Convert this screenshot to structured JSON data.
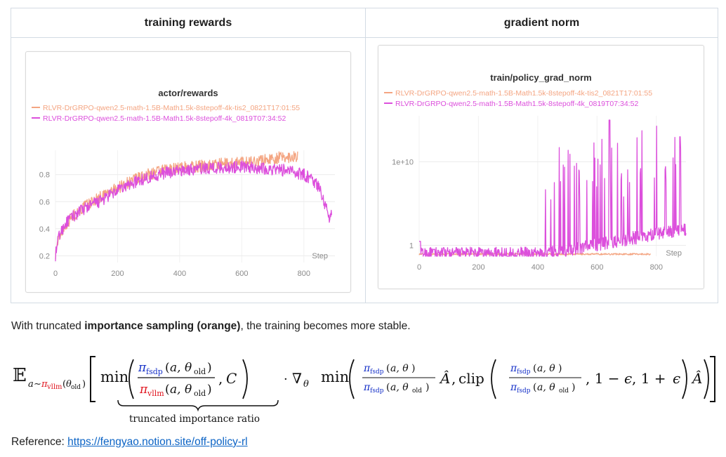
{
  "table": {
    "left_header": "training rewards",
    "right_header": "gradient norm"
  },
  "colors": {
    "orange": "#f4a582",
    "magenta": "#dc4fdc",
    "axis_text": "#8a8a8a",
    "link": "#0b63c5",
    "formula_red": "#e0141e",
    "formula_blue": "#1530c8"
  },
  "chart_data": [
    {
      "type": "line",
      "title": "actor/rewards",
      "xlabel": "Step",
      "ylabel": "",
      "xlim": [
        0,
        900
      ],
      "ylim": [
        0.15,
        0.98
      ],
      "x_ticks": [
        "0",
        "200",
        "400",
        "600",
        "800"
      ],
      "y_ticks": [
        "0.2",
        "0.4",
        "0.6",
        "0.8"
      ],
      "grid": true,
      "legend": "top",
      "series": [
        {
          "name": "RLVR-DrGRPO-qwen2.5-math-1.5B-Math1.5k-8stepoff-4k-tis2_0821T17:01:55",
          "color": "orange",
          "x": [
            0,
            10,
            30,
            50,
            80,
            110,
            150,
            200,
            250,
            300,
            350,
            400,
            450,
            500,
            550,
            600,
            650,
            700,
            750,
            780
          ],
          "y": [
            0.22,
            0.33,
            0.42,
            0.48,
            0.54,
            0.59,
            0.64,
            0.7,
            0.76,
            0.8,
            0.83,
            0.85,
            0.86,
            0.87,
            0.88,
            0.89,
            0.9,
            0.92,
            0.93,
            0.94
          ]
        },
        {
          "name": "RLVR-DrGRPO-qwen2.5-math-1.5B-Math1.5k-8stepoff-4k_0819T07:34:52",
          "color": "magenta",
          "x": [
            0,
            10,
            30,
            50,
            80,
            110,
            150,
            200,
            250,
            300,
            350,
            400,
            450,
            500,
            550,
            600,
            650,
            700,
            750,
            800,
            830,
            850,
            870,
            880,
            890
          ],
          "y": [
            0.2,
            0.34,
            0.43,
            0.48,
            0.53,
            0.57,
            0.61,
            0.68,
            0.74,
            0.78,
            0.81,
            0.83,
            0.84,
            0.85,
            0.85,
            0.86,
            0.85,
            0.84,
            0.83,
            0.8,
            0.76,
            0.7,
            0.57,
            0.48,
            0.53
          ]
        }
      ]
    },
    {
      "type": "line",
      "title": "train/policy_grad_norm",
      "xlabel": "Step",
      "ylabel": "",
      "xlim": [
        0,
        900
      ],
      "y_scale": "log",
      "y_ticks": [
        "1",
        "1e+10"
      ],
      "x_ticks": [
        "0",
        "200",
        "400",
        "600",
        "800"
      ],
      "grid": true,
      "legend": "top",
      "series": [
        {
          "name": "RLVR-DrGRPO-qwen2.5-math-1.5B-Math1.5k-8stepoff-4k-tis2_0821T17:01:55",
          "color": "orange",
          "x": [
            0,
            100,
            200,
            300,
            400,
            500,
            600,
            700,
            780
          ],
          "y": [
            0.1,
            0.1,
            0.1,
            0.1,
            0.1,
            0.1,
            0.1,
            0.1,
            0.1
          ]
        },
        {
          "name": "RLVR-DrGRPO-qwen2.5-math-1.5B-Math1.5k-8stepoff-4k_0819T07:34:52",
          "color": "magenta",
          "x": [
            0,
            100,
            200,
            300,
            400,
            450,
            500,
            550,
            600,
            630,
            650,
            700,
            750,
            800,
            850,
            880,
            900
          ],
          "y": [
            0.1,
            0.1,
            0.1,
            0.1,
            1,
            10,
            100,
            1000,
            100000,
            1000000000000000.0,
            1000,
            10000,
            100000,
            1000000.0,
            100000000.0,
            1000000000000.0,
            1
          ]
        }
      ]
    }
  ],
  "caption": {
    "prefix": "With truncated ",
    "bold": "importance sampling (orange)",
    "suffix": ", the training becomes more stable."
  },
  "formula": {
    "underbrace_label": "truncated importance ratio"
  },
  "reference": {
    "label": "Reference: ",
    "link_text": "https://fengyao.notion.site/off-policy-rl"
  }
}
